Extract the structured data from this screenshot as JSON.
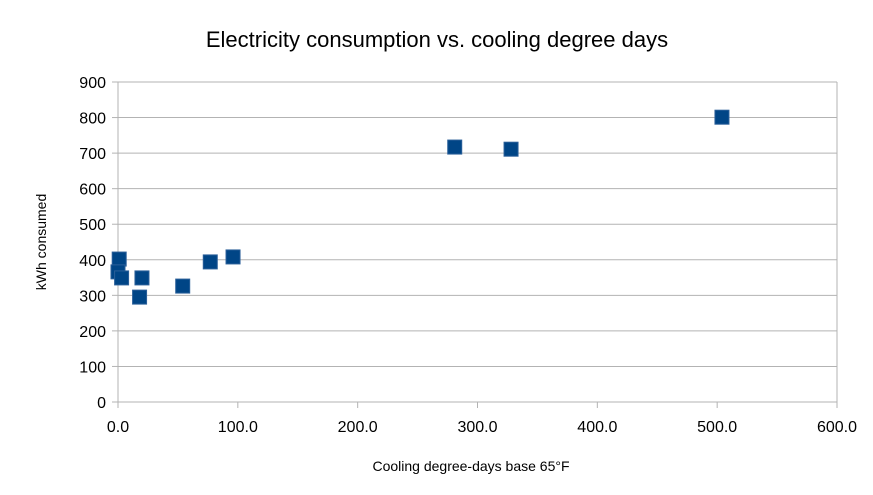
{
  "chart_data": {
    "type": "scatter",
    "title": "Electricity consumption vs. cooling degree days",
    "xlabel": "Cooling degree-days base 65°F",
    "ylabel": "kWh consumed",
    "xlim": [
      0,
      600
    ],
    "ylim": [
      0,
      900
    ],
    "xticks": [
      "0.0",
      "100.0",
      "200.0",
      "300.0",
      "400.0",
      "500.0",
      "600.0"
    ],
    "yticks": [
      "0",
      "100",
      "200",
      "300",
      "400",
      "500",
      "600",
      "700",
      "800",
      "900"
    ],
    "grid": "horizontal",
    "legend": "none",
    "marker": "square",
    "color": "#004586",
    "points": [
      {
        "x": 1,
        "y": 402
      },
      {
        "x": 0,
        "y": 366
      },
      {
        "x": 3,
        "y": 349
      },
      {
        "x": 20,
        "y": 349
      },
      {
        "x": 18,
        "y": 295
      },
      {
        "x": 54,
        "y": 326
      },
      {
        "x": 77,
        "y": 394
      },
      {
        "x": 96,
        "y": 408
      },
      {
        "x": 281,
        "y": 717
      },
      {
        "x": 328,
        "y": 711
      },
      {
        "x": 504,
        "y": 801
      }
    ]
  }
}
